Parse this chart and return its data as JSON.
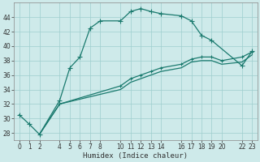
{
  "xlabel": "Humidex (Indice chaleur)",
  "bg_color": "#ceeaea",
  "line_color": "#1a7a6e",
  "grid_color": "#9ecece",
  "ylim": [
    27,
    46
  ],
  "xlim": [
    -0.5,
    23.5
  ],
  "yticks": [
    28,
    30,
    32,
    34,
    36,
    38,
    40,
    42,
    44
  ],
  "xticks": [
    0,
    1,
    2,
    4,
    5,
    6,
    7,
    8,
    10,
    11,
    12,
    13,
    14,
    16,
    17,
    18,
    19,
    20,
    22,
    23
  ],
  "series": [
    {
      "x": [
        0,
        1,
        2,
        4,
        5,
        6,
        7,
        8,
        10,
        11,
        12,
        13,
        14,
        16,
        17,
        18,
        19,
        22,
        23
      ],
      "y": [
        30.5,
        29.2,
        27.8,
        32.5,
        37.0,
        38.5,
        42.5,
        43.5,
        43.5,
        44.8,
        45.2,
        44.8,
        44.5,
        44.2,
        43.5,
        41.5,
        40.8,
        37.3,
        39.3
      ],
      "marker": "+",
      "markersize": 4,
      "linestyle": "-",
      "linewidth": 0.9
    },
    {
      "x": [
        2,
        4,
        10,
        11,
        12,
        13,
        14,
        16,
        17,
        18,
        19,
        20,
        22,
        23
      ],
      "y": [
        27.8,
        32.0,
        34.5,
        35.5,
        36.0,
        36.5,
        37.0,
        37.5,
        38.2,
        38.5,
        38.5,
        38.0,
        38.5,
        39.2
      ],
      "marker": "+",
      "markersize": 3,
      "linestyle": "-",
      "linewidth": 0.9
    },
    {
      "x": [
        2,
        4,
        10,
        11,
        12,
        13,
        14,
        16,
        17,
        18,
        19,
        20,
        22,
        23
      ],
      "y": [
        27.8,
        32.0,
        34.0,
        35.0,
        35.5,
        36.0,
        36.5,
        37.0,
        37.8,
        38.0,
        38.0,
        37.5,
        37.8,
        38.8
      ],
      "marker": null,
      "markersize": 0,
      "linestyle": "-",
      "linewidth": 0.9
    }
  ]
}
